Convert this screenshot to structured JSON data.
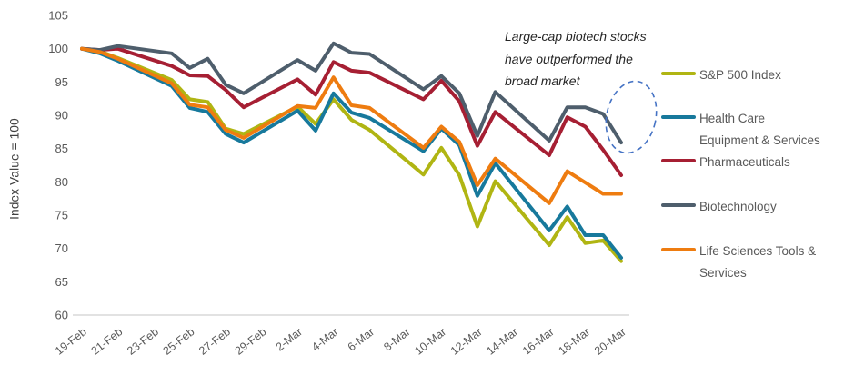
{
  "page": {
    "background": "#ffffff"
  },
  "chart_data": {
    "type": "line",
    "title": "",
    "xlabel": "",
    "ylabel": "Index Value = 100",
    "ylim": [
      60,
      105
    ],
    "ytick_step": 5,
    "yticks": [
      105,
      100,
      95,
      90,
      85,
      80,
      75,
      70,
      65,
      60
    ],
    "grid": false,
    "legend_position": "right",
    "x_dates": [
      "19-Feb",
      "20-Feb",
      "21-Feb",
      "24-Feb",
      "25-Feb",
      "26-Feb",
      "27-Feb",
      "28-Feb",
      "2-Mar",
      "3-Mar",
      "4-Mar",
      "5-Mar",
      "6-Mar",
      "9-Mar",
      "10-Mar",
      "11-Mar",
      "12-Mar",
      "13-Mar",
      "16-Mar",
      "17-Mar",
      "18-Mar",
      "19-Mar",
      "20-Mar"
    ],
    "x_day_offsets": [
      0,
      1,
      2,
      5,
      6,
      7,
      8,
      9,
      12,
      13,
      14,
      15,
      16,
      19,
      20,
      21,
      22,
      23,
      26,
      27,
      28,
      29,
      30
    ],
    "xtick_labels": [
      "19-Feb",
      "21-Feb",
      "23-Feb",
      "25-Feb",
      "27-Feb",
      "29-Feb",
      "2-Mar",
      "4-Mar",
      "6-Mar",
      "8-Mar",
      "10-Mar",
      "12-Mar",
      "14-Mar",
      "16-Mar",
      "18-Mar",
      "20-Mar"
    ],
    "xtick_day_offsets": [
      0,
      2,
      4,
      6,
      8,
      10,
      12,
      14,
      16,
      18,
      20,
      22,
      24,
      26,
      28,
      30
    ],
    "series": [
      {
        "name": "S&P 500 Index",
        "legend_label": "S&P 500 Index",
        "color": "#b0b513",
        "values": [
          100,
          99.6,
          98.6,
          95.3,
          92.4,
          92.0,
          88.0,
          87.2,
          91.3,
          88.7,
          92.4,
          89.3,
          87.8,
          81.1,
          85.1,
          81.0,
          73.3,
          80.1,
          70.5,
          74.7,
          70.8,
          71.2,
          68.1
        ]
      },
      {
        "name": "Health Care Equipment & Services",
        "legend_label": "Health Care\nEquipment & Services",
        "color": "#17799c",
        "values": [
          100,
          99.3,
          98.2,
          94.4,
          91.1,
          90.5,
          87.2,
          85.9,
          90.7,
          87.7,
          93.3,
          90.4,
          89.6,
          84.6,
          88.0,
          85.5,
          77.9,
          82.8,
          72.7,
          76.3,
          72.0,
          72.0,
          68.6
        ]
      },
      {
        "name": "Pharmaceuticals",
        "legend_label": "Pharmaceuticals",
        "color": "#a61f33",
        "values": [
          100,
          99.8,
          100.0,
          97.4,
          96.0,
          95.9,
          93.8,
          91.2,
          95.4,
          93.1,
          98.0,
          96.7,
          96.4,
          92.4,
          95.2,
          92.1,
          85.4,
          90.5,
          84.0,
          89.7,
          88.3,
          84.8,
          81.0
        ]
      },
      {
        "name": "Biotechnology",
        "legend_label": "Biotechnology",
        "color": "#4e5e6c",
        "values": [
          100,
          99.8,
          100.4,
          99.3,
          97.1,
          98.5,
          94.6,
          93.3,
          98.3,
          96.7,
          100.8,
          99.4,
          99.2,
          93.9,
          95.9,
          93.3,
          86.9,
          93.5,
          86.2,
          91.2,
          91.2,
          90.2,
          85.9
        ]
      },
      {
        "name": "Life Sciences Tools & Services",
        "legend_label": "Life Sciences Tools &\nServices",
        "color": "#ee7c10",
        "values": [
          100,
          99.5,
          98.5,
          94.8,
          91.6,
          91.2,
          87.8,
          86.6,
          91.4,
          91.1,
          95.7,
          91.5,
          91.1,
          85.1,
          88.3,
          86.0,
          79.5,
          83.5,
          76.8,
          81.6,
          79.9,
          78.2,
          78.2
        ]
      }
    ],
    "annotation": {
      "line1": "Large-cap biotech stocks",
      "line2": "have outperformed the",
      "line3": "broad market",
      "color": "#262626"
    },
    "highlight": {
      "target": "Biotechnology line end",
      "shape": "dashed-ellipse",
      "color": "#4472c4"
    },
    "colors": {
      "axis_text": "#595959",
      "axis_line": "#d9d9d9",
      "y_title_text": "#404040"
    }
  }
}
